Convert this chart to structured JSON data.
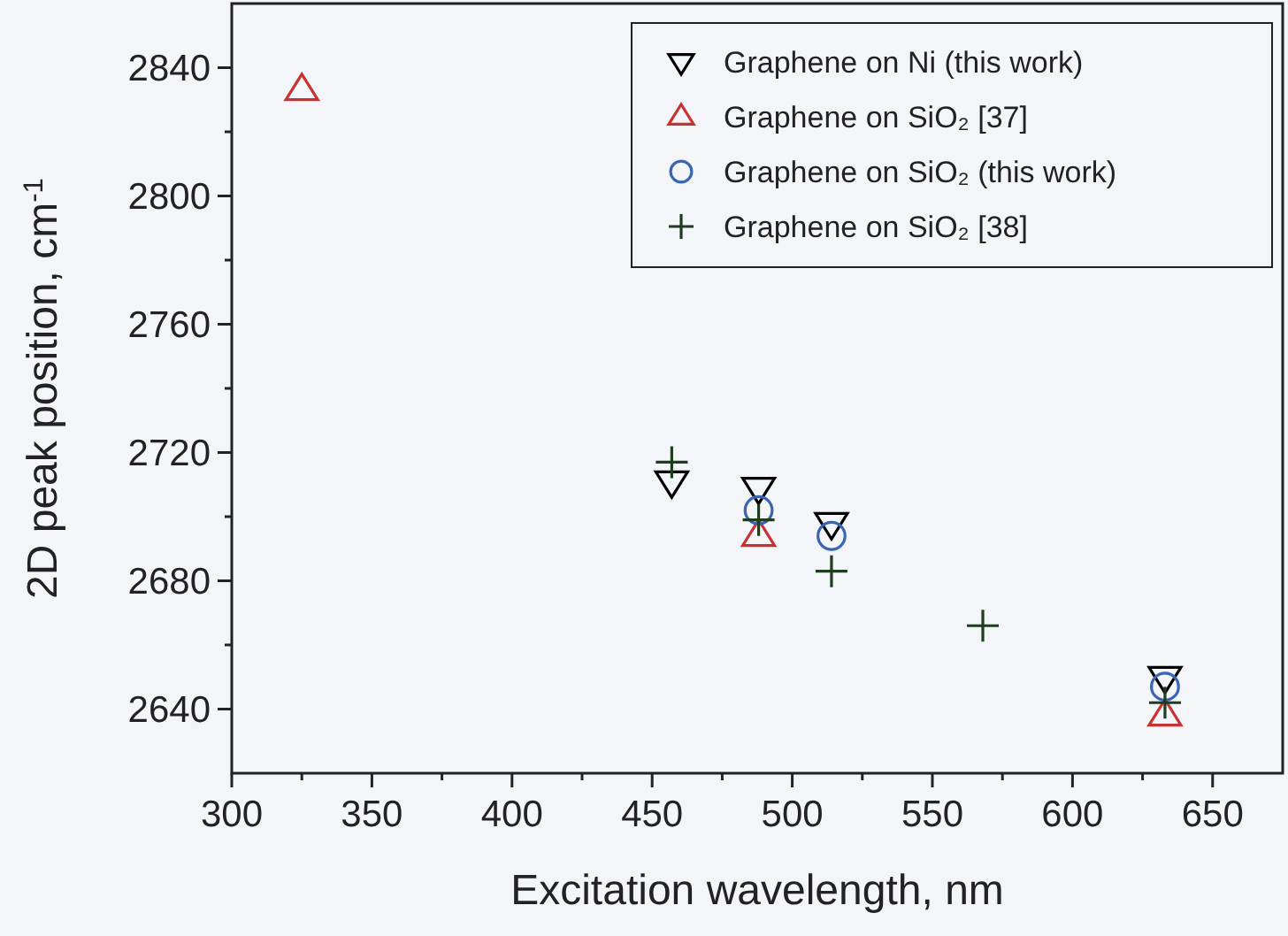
{
  "chart_data": {
    "type": "scatter",
    "xlabel": "Excitation wavelength, nm",
    "ylabel": "2D peak position, cm$^{-1}$",
    "xlim": [
      300,
      675
    ],
    "xticks": [
      300,
      350,
      400,
      450,
      500,
      550,
      600,
      650
    ],
    "ylim": [
      2620,
      2860
    ],
    "yticks": [
      2640,
      2680,
      2720,
      2760,
      2800,
      2840
    ],
    "grid": false,
    "legend": "top right",
    "series": [
      {
        "name": "Graphene on Ni (this work)",
        "color": "#000000",
        "marker": "triangle-down",
        "x": [
          457,
          488,
          514,
          633
        ],
        "values": [
          2711,
          2709,
          2698,
          2650
        ]
      },
      {
        "name": "Graphene on SiO₂ [37]",
        "color": "#c83232",
        "marker": "triangle",
        "x": [
          325,
          488,
          633
        ],
        "values": [
          2833,
          2694,
          2638
        ]
      },
      {
        "name": "Graphene on SiO₂ (this work)",
        "color": "#3a64b4",
        "marker": "circle",
        "x": [
          488,
          514,
          633
        ],
        "values": [
          2702,
          2694,
          2647
        ]
      },
      {
        "name": "Graphene on SiO₂ [38]",
        "color": "#1e3c1e",
        "marker": "cross",
        "x": [
          457,
          488,
          514,
          568,
          633
        ],
        "values": [
          2717,
          2699,
          2683,
          2666,
          2642
        ]
      }
    ]
  }
}
